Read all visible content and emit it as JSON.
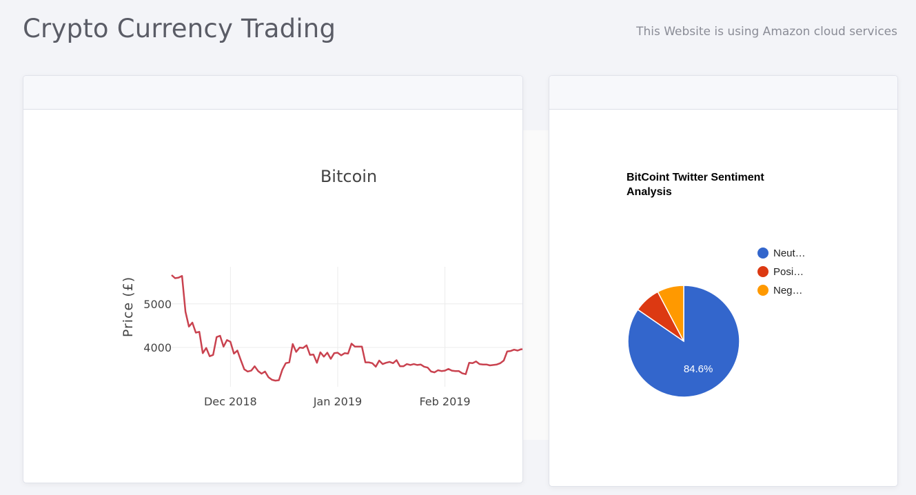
{
  "header": {
    "title": "Crypto Currency Trading",
    "note": "This Website is using Amazon cloud services"
  },
  "price_chart": {
    "title": "Bitcoin",
    "ylabel": "Price (£)",
    "yticks": [
      "5000",
      "4000"
    ],
    "xticks": [
      "Dec 2018",
      "Jan 2019",
      "Feb 2019"
    ],
    "line_color": "#c9424f"
  },
  "sentiment_chart": {
    "title_line1": "BitCoint Twitter Sentiment",
    "title_line2": "Analysis",
    "legend": [
      {
        "label": "Neut…",
        "color": "#3366cc"
      },
      {
        "label": "Posi…",
        "color": "#dc3912"
      },
      {
        "label": "Neg…",
        "color": "#ff9900"
      }
    ],
    "slice_label": "84.6%"
  },
  "chart_data": [
    {
      "type": "line",
      "title": "Bitcoin",
      "xlabel": "",
      "ylabel": "Price (£)",
      "ylim": [
        3100,
        5850
      ],
      "x_tick_labels": [
        "Dec 2018",
        "Jan 2019",
        "Feb 2019"
      ],
      "x_range": [
        "2018-11-14",
        "2019-02-24"
      ],
      "series": [
        {
          "x": [
            "2018-11-14",
            "2018-11-15",
            "2018-11-16",
            "2018-11-17",
            "2018-11-18",
            "2018-11-19",
            "2018-11-20",
            "2018-11-21",
            "2018-11-22",
            "2018-11-23",
            "2018-11-24",
            "2018-11-25",
            "2018-11-26",
            "2018-11-27",
            "2018-11-28",
            "2018-11-29",
            "2018-11-30",
            "2018-12-01",
            "2018-12-02",
            "2018-12-03",
            "2018-12-04",
            "2018-12-05",
            "2018-12-06",
            "2018-12-07",
            "2018-12-08",
            "2018-12-09",
            "2018-12-10",
            "2018-12-11",
            "2018-12-12",
            "2018-12-13",
            "2018-12-14",
            "2018-12-15",
            "2018-12-16",
            "2018-12-17",
            "2018-12-18",
            "2018-12-19",
            "2018-12-20",
            "2018-12-21",
            "2018-12-22",
            "2018-12-23",
            "2018-12-24",
            "2018-12-25",
            "2018-12-26",
            "2018-12-27",
            "2018-12-28",
            "2018-12-29",
            "2018-12-30",
            "2018-12-31",
            "2019-01-01",
            "2019-01-02",
            "2019-01-03",
            "2019-01-04",
            "2019-01-05",
            "2019-01-06",
            "2019-01-07",
            "2019-01-08",
            "2019-01-09",
            "2019-01-10",
            "2019-01-11",
            "2019-01-12",
            "2019-01-13",
            "2019-01-14",
            "2019-01-15",
            "2019-01-16",
            "2019-01-17",
            "2019-01-18",
            "2019-01-19",
            "2019-01-20",
            "2019-01-21",
            "2019-01-22",
            "2019-01-23",
            "2019-01-24",
            "2019-01-25",
            "2019-01-26",
            "2019-01-27",
            "2019-01-28",
            "2019-01-29",
            "2019-01-30",
            "2019-01-31",
            "2019-02-01",
            "2019-02-02",
            "2019-02-03",
            "2019-02-04",
            "2019-02-05",
            "2019-02-06",
            "2019-02-07",
            "2019-02-08",
            "2019-02-09",
            "2019-02-10",
            "2019-02-11",
            "2019-02-12",
            "2019-02-13",
            "2019-02-14",
            "2019-02-15",
            "2019-02-16",
            "2019-02-17",
            "2019-02-18",
            "2019-02-19",
            "2019-02-20",
            "2019-02-21",
            "2019-02-22",
            "2019-02-23",
            "2019-02-24"
          ],
          "y": [
            5660,
            5590,
            5600,
            5640,
            4820,
            4480,
            4570,
            4340,
            4360,
            3870,
            3990,
            3800,
            3830,
            4240,
            4270,
            4020,
            4170,
            4130,
            3860,
            3930,
            3710,
            3500,
            3450,
            3470,
            3570,
            3460,
            3400,
            3450,
            3320,
            3260,
            3240,
            3250,
            3490,
            3640,
            3660,
            4080,
            3900,
            4000,
            3990,
            4050,
            3830,
            3840,
            3650,
            3890,
            3790,
            3880,
            3740,
            3870,
            3880,
            3820,
            3870,
            3860,
            4090,
            4020,
            4020,
            4020,
            3660,
            3660,
            3640,
            3560,
            3700,
            3620,
            3650,
            3670,
            3640,
            3710,
            3570,
            3570,
            3620,
            3600,
            3620,
            3600,
            3610,
            3560,
            3540,
            3450,
            3430,
            3480,
            3460,
            3470,
            3510,
            3470,
            3460,
            3460,
            3410,
            3390,
            3650,
            3640,
            3680,
            3620,
            3610,
            3610,
            3590,
            3600,
            3610,
            3640,
            3700,
            3910,
            3920,
            3950,
            3930,
            3960,
            3960
          ]
        }
      ]
    },
    {
      "type": "pie",
      "title": "BitCoint Twitter Sentiment Analysis",
      "labels": [
        "Neut…",
        "Posi…",
        "Neg…"
      ],
      "values": [
        84.6,
        7.7,
        7.7
      ],
      "colors": [
        "#3366cc",
        "#dc3912",
        "#ff9900"
      ],
      "slice_labels": [
        "84.6%",
        "",
        ""
      ],
      "legend_position": "right"
    }
  ]
}
